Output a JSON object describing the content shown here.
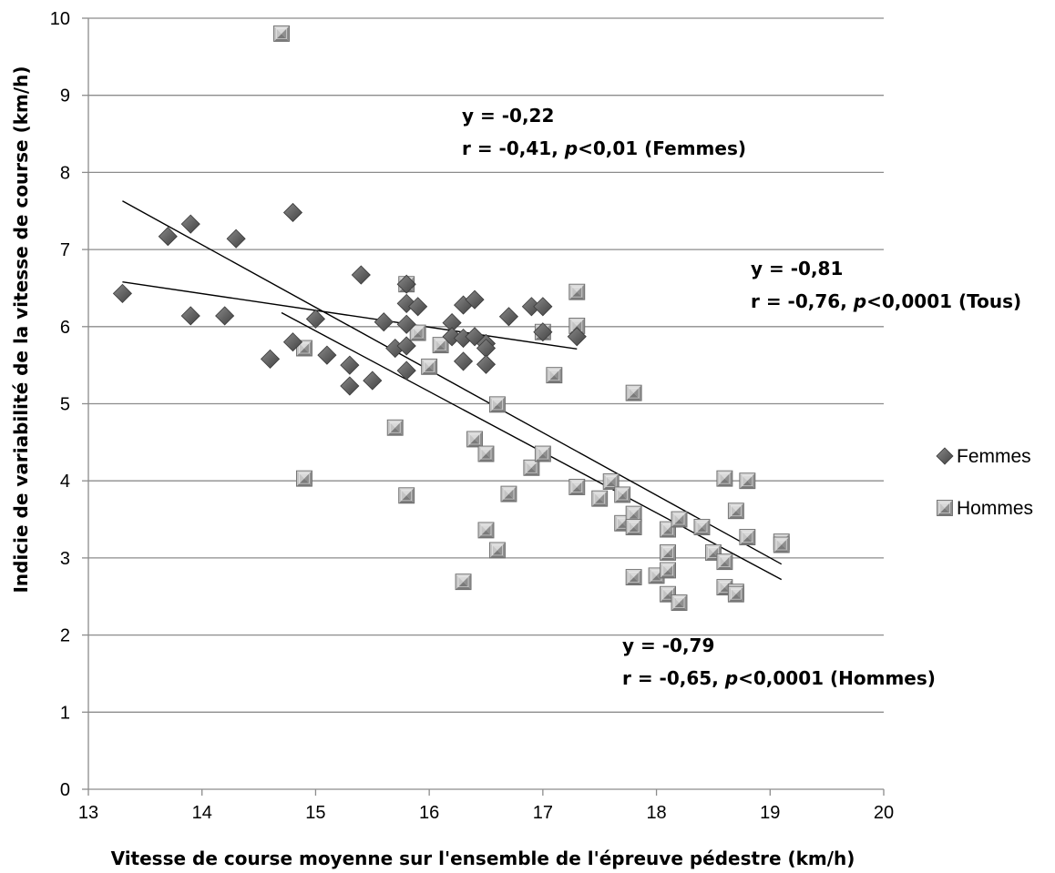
{
  "chart_data": {
    "type": "scatter",
    "title": "",
    "xlabel": "Vitesse de course moyenne sur l'ensemble de l'épreuve pédestre (km/h)",
    "ylabel": "Indicie de variabilité de la vitesse de course (km/h)",
    "xlim": [
      13,
      20
    ],
    "ylim": [
      0,
      10
    ],
    "xticks": [
      "13",
      "14",
      "15",
      "16",
      "17",
      "18",
      "19",
      "20"
    ],
    "yticks": [
      "0",
      "1",
      "2",
      "3",
      "4",
      "5",
      "6",
      "7",
      "8",
      "9",
      "10"
    ],
    "grid": "horizontal",
    "legend_position": "right",
    "series": [
      {
        "name": "Femmes",
        "marker": "diamond",
        "color": "#5a5a5a",
        "points": [
          [
            13.3,
            6.43
          ],
          [
            13.7,
            7.17
          ],
          [
            13.9,
            7.33
          ],
          [
            13.9,
            6.14
          ],
          [
            14.2,
            6.14
          ],
          [
            14.3,
            7.14
          ],
          [
            14.6,
            5.58
          ],
          [
            14.8,
            7.48
          ],
          [
            14.8,
            5.8
          ],
          [
            15.0,
            6.1
          ],
          [
            15.1,
            5.63
          ],
          [
            15.3,
            5.5
          ],
          [
            15.3,
            5.23
          ],
          [
            15.4,
            6.67
          ],
          [
            15.5,
            5.3
          ],
          [
            15.6,
            6.06
          ],
          [
            15.7,
            5.72
          ],
          [
            15.8,
            6.55
          ],
          [
            15.8,
            6.3
          ],
          [
            15.8,
            6.03
          ],
          [
            15.8,
            5.75
          ],
          [
            15.8,
            5.43
          ],
          [
            15.9,
            6.26
          ],
          [
            16.2,
            6.05
          ],
          [
            16.2,
            5.87
          ],
          [
            16.3,
            6.28
          ],
          [
            16.3,
            5.85
          ],
          [
            16.3,
            5.55
          ],
          [
            16.4,
            6.35
          ],
          [
            16.4,
            5.87
          ],
          [
            16.5,
            5.78
          ],
          [
            16.5,
            5.72
          ],
          [
            16.5,
            5.51
          ],
          [
            16.7,
            6.13
          ],
          [
            16.9,
            6.26
          ],
          [
            17.0,
            6.26
          ],
          [
            17.0,
            5.93
          ],
          [
            17.3,
            5.87
          ]
        ]
      },
      {
        "name": "Hommes",
        "marker": "square",
        "color": "#a6a6a6",
        "points": [
          [
            14.7,
            9.8
          ],
          [
            14.9,
            5.72
          ],
          [
            14.9,
            4.03
          ],
          [
            15.7,
            4.69
          ],
          [
            15.8,
            6.55
          ],
          [
            15.8,
            3.81
          ],
          [
            15.9,
            5.92
          ],
          [
            16.0,
            5.48
          ],
          [
            16.1,
            5.76
          ],
          [
            16.3,
            2.69
          ],
          [
            16.4,
            4.54
          ],
          [
            16.5,
            4.35
          ],
          [
            16.5,
            3.36
          ],
          [
            16.6,
            4.99
          ],
          [
            16.6,
            3.1
          ],
          [
            16.7,
            3.83
          ],
          [
            16.9,
            4.17
          ],
          [
            17.0,
            5.93
          ],
          [
            17.0,
            4.35
          ],
          [
            17.1,
            5.37
          ],
          [
            17.3,
            6.45
          ],
          [
            17.3,
            6.01
          ],
          [
            17.3,
            3.92
          ],
          [
            17.5,
            3.77
          ],
          [
            17.6,
            3.99
          ],
          [
            17.7,
            3.82
          ],
          [
            17.7,
            3.45
          ],
          [
            17.8,
            5.14
          ],
          [
            17.8,
            3.57
          ],
          [
            17.8,
            3.4
          ],
          [
            17.8,
            2.75
          ],
          [
            18.0,
            2.77
          ],
          [
            18.1,
            3.37
          ],
          [
            18.1,
            3.07
          ],
          [
            18.1,
            2.84
          ],
          [
            18.1,
            2.53
          ],
          [
            18.2,
            3.5
          ],
          [
            18.2,
            2.42
          ],
          [
            18.4,
            3.4
          ],
          [
            18.5,
            3.07
          ],
          [
            18.6,
            4.03
          ],
          [
            18.6,
            2.95
          ],
          [
            18.6,
            2.62
          ],
          [
            18.7,
            3.61
          ],
          [
            18.7,
            2.56
          ],
          [
            18.7,
            2.53
          ],
          [
            18.8,
            4.0
          ],
          [
            18.8,
            3.27
          ],
          [
            19.1,
            3.21
          ],
          [
            19.1,
            3.17
          ]
        ]
      }
    ],
    "trendlines": [
      {
        "group": "Femmes",
        "x": [
          13.3,
          17.3
        ],
        "y": [
          6.58,
          5.71
        ]
      },
      {
        "group": "Tous",
        "x": [
          13.3,
          19.1
        ],
        "y": [
          7.63,
          2.92
        ]
      },
      {
        "group": "Hommes",
        "x": [
          14.7,
          19.1
        ],
        "y": [
          6.18,
          2.72
        ]
      }
    ],
    "annotations": [
      {
        "id": "femmes",
        "line1": "y = -0,22",
        "line2_pre": "r = -0,41, ",
        "p": "p",
        "line2_post": "<0,01 (Femmes)"
      },
      {
        "id": "tous",
        "line1": "y = -0,81",
        "line2_pre": "r = -0,76, ",
        "p": "p",
        "line2_post": "<0,0001 (Tous)"
      },
      {
        "id": "hommes",
        "line1": "y = -0,79",
        "line2_pre": "r = -0,65, ",
        "p": "p",
        "line2_post": "<0,0001 (Hommes)"
      }
    ]
  }
}
